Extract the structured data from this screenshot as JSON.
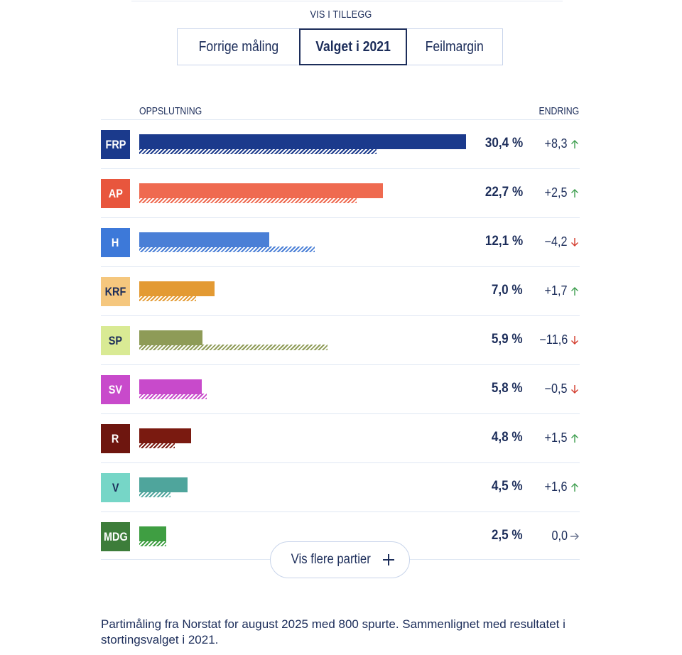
{
  "header": {
    "extra_label": "VIS I TILLEGG",
    "toggles": [
      "Forrige måling",
      "Valget i 2021",
      "Feilmargin"
    ],
    "selected_toggle": "Valget i 2021"
  },
  "columns": {
    "left": "OPPSLUTNING",
    "right": "ENDRING"
  },
  "chart_data": {
    "type": "bar",
    "orientation": "horizontal",
    "categories": [
      "FRP",
      "AP",
      "H",
      "KRF",
      "SP",
      "SV",
      "R",
      "V",
      "MDG"
    ],
    "series": [
      {
        "name": "",
        "values": [
          30.4,
          22.7,
          12.1,
          7.0,
          5.9,
          5.8,
          4.8,
          4.5,
          2.5
        ]
      },
      {
        "name": "",
        "values": [
          22.1,
          20.2,
          16.3,
          5.3,
          17.5,
          6.3,
          3.3,
          2.9,
          2.5
        ]
      }
    ],
    "value_labels": [
      "30,4 %",
      "22,7 %",
      "12,1 %",
      "7,0 %",
      "5,9 %",
      "5,8 %",
      "4,8 %",
      "4,5 %",
      "2,5 %"
    ],
    "change_labels": [
      "+8,3",
      "+2,5",
      "−4,2",
      "+1,7",
      "−11,6",
      "−0,5",
      "+1,5",
      "+1,6",
      "0,0"
    ],
    "change_direction": [
      "up",
      "up",
      "down",
      "up",
      "down",
      "down",
      "up",
      "up",
      "flat"
    ],
    "colors": [
      "#1b3a8c",
      "#ef6a50",
      "#4a7fd6",
      "#e39a33",
      "#8e9b57",
      "#c84acb",
      "#7a1a10",
      "#4fa59c",
      "#3f9e42"
    ],
    "badge_colors": [
      "#1b3a8c",
      "#e8563d",
      "#3d79d9",
      "#f5c77e",
      "#d9ea94",
      "#c84acb",
      "#6e160f",
      "#76d6c7",
      "#3d7d3a"
    ],
    "badge_text_colors": [
      "#ffffff",
      "#ffffff",
      "#ffffff",
      "#1c2d5a",
      "#1c2d5a",
      "#ffffff",
      "#ffffff",
      "#1c2d5a",
      "#ffffff"
    ],
    "xlim": [
      0,
      30.4
    ]
  },
  "arrow_colors": {
    "up": "#3e9e4f",
    "down": "#d33b2c",
    "flat": "#6b7590"
  },
  "more_button": {
    "label": "Vis flere partier"
  },
  "footnote": "Partimåling fra Norstat for august 2025 med 800 spurte. Sammenlignet med resultatet i stortingsvalget i 2021."
}
